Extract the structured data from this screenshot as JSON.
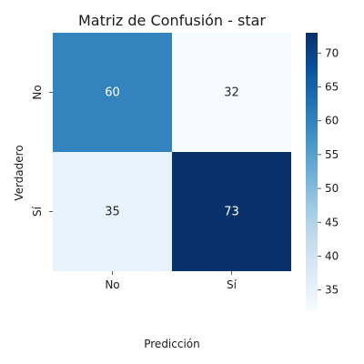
{
  "chart_data": {
    "type": "heatmap",
    "title": "Matriz de Confusión - star",
    "xlabel": "Predicción",
    "ylabel": "Verdadero",
    "x_categories": [
      "No",
      "Sí"
    ],
    "y_categories": [
      "No",
      "Sí"
    ],
    "values": [
      [
        60,
        32
      ],
      [
        35,
        73
      ]
    ],
    "colorbar": {
      "min": 32,
      "max": 73,
      "ticks": [
        35,
        40,
        45,
        50,
        55,
        60,
        65,
        70
      ],
      "colormap": "Blues"
    }
  }
}
